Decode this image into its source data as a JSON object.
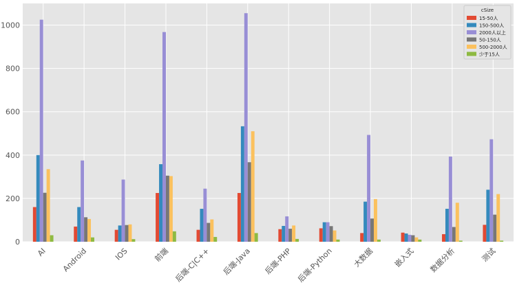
{
  "chart_data": {
    "type": "bar",
    "categories": [
      "AI",
      "Android",
      "IOS",
      "前端",
      "后端-C|C++",
      "后端-Java",
      "后端-PHP",
      "后端-Python",
      "大数据",
      "嵌入式",
      "数据分析",
      "测试"
    ],
    "series": [
      {
        "name": "15-50人",
        "color": "#e24a33",
        "values": [
          160,
          70,
          55,
          225,
          55,
          225,
          58,
          62,
          40,
          42,
          35,
          78
        ]
      },
      {
        "name": "150-500人",
        "color": "#348abd",
        "values": [
          400,
          160,
          75,
          358,
          152,
          533,
          73,
          90,
          185,
          38,
          152,
          240
        ]
      },
      {
        "name": "2000人以上",
        "color": "#988ed5",
        "values": [
          1025,
          375,
          287,
          968,
          245,
          1055,
          117,
          90,
          493,
          32,
          393,
          473
        ]
      },
      {
        "name": "50-150人",
        "color": "#777777",
        "values": [
          226,
          113,
          77,
          305,
          87,
          367,
          60,
          72,
          107,
          30,
          68,
          125
        ]
      },
      {
        "name": "500-2000人",
        "color": "#fbc15e",
        "values": [
          335,
          105,
          80,
          303,
          103,
          510,
          75,
          52,
          197,
          20,
          180,
          220
        ]
      },
      {
        "name": "少于15人",
        "color": "#8eba42",
        "values": [
          30,
          20,
          12,
          48,
          22,
          40,
          13,
          10,
          10,
          10,
          5,
          5
        ]
      }
    ],
    "yticks": [
      0,
      200,
      400,
      600,
      800,
      1000
    ],
    "ylim": [
      0,
      1100
    ],
    "legend_title": "cSize",
    "legend_position": "top-right",
    "grid": true,
    "background": "#e5e5e5",
    "grid_color": "#ffffff"
  }
}
